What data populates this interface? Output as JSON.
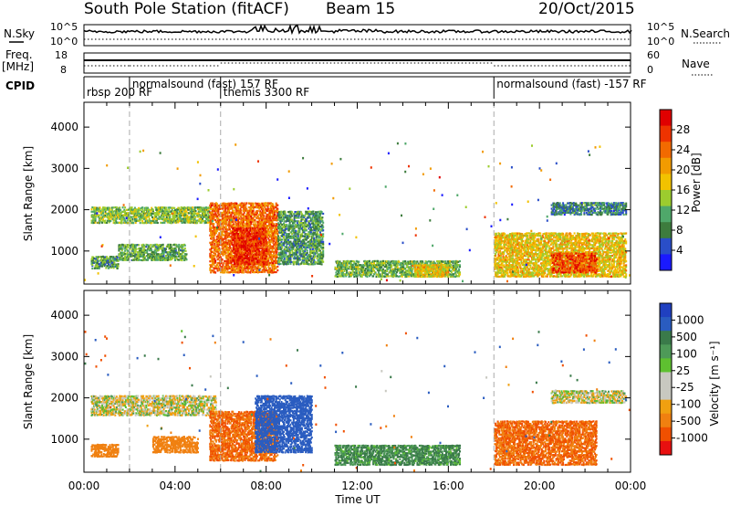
{
  "header": {
    "station": "South Pole Station (fitACF)",
    "beam": "Beam 15",
    "date": "20/Oct/2015"
  },
  "top_panels": {
    "nsky_label": "N.Sky",
    "nsearch_label": "N.Search",
    "nsky_ticks": [
      "10^5",
      "10^0"
    ],
    "nsearch_ticks": [
      "10^5",
      "10^0"
    ],
    "freq_label_1": "Freq.",
    "freq_label_2": "[MHz]",
    "freq_ticks": [
      "18",
      "8"
    ],
    "nave_label": "Nave",
    "nave_ticks": [
      "60",
      "0"
    ],
    "cpid_label": "CPID",
    "cpid_segments": [
      {
        "label": "rbsp 200 RF",
        "start_hour": 0
      },
      {
        "label": "normalsound (fast) 157 RF",
        "start_hour": 2
      },
      {
        "label": "themis 3300 RF",
        "start_hour": 6
      },
      {
        "label": "normalsound (fast) -157 RF",
        "start_hour": 18
      }
    ]
  },
  "colors": {
    "power_scale": [
      "#1a1aff",
      "#2a4ec8",
      "#3d7c3d",
      "#4fa86a",
      "#9ccc2e",
      "#f2c200",
      "#f29b00",
      "#f26a00",
      "#ee3300",
      "#e00000"
    ],
    "velocity_scale": [
      "#2040c0",
      "#2a5cc0",
      "#3a7a4a",
      "#4e9a58",
      "#5ec030",
      "#c8c8c0",
      "#c8c8c0",
      "#f0a010",
      "#f08010",
      "#f05000",
      "#e81010"
    ]
  },
  "chart_data": [
    {
      "type": "heatmap",
      "title": "",
      "xlabel": "Time UT",
      "ylabel": "Slant Range [km]",
      "x_ticks": [
        "00:00",
        "04:00",
        "08:00",
        "12:00",
        "16:00",
        "20:00",
        "00:00"
      ],
      "xlim_hours": [
        0,
        24
      ],
      "ylim": [
        200,
        4600
      ],
      "y_ticks": [
        "4000",
        "3000",
        "2000",
        "1000"
      ],
      "colorbar_label": "Power [dB]",
      "colorbar_ticks": [
        "28",
        "24",
        "20",
        "16",
        "12",
        "8",
        "4"
      ],
      "colorbar_range": [
        0,
        32
      ],
      "features": [
        {
          "hour_start": 0.3,
          "hour_end": 5.5,
          "range_start": 1700,
          "range_end": 2100,
          "power": 13
        },
        {
          "hour_start": 0.3,
          "hour_end": 1.5,
          "range_start": 600,
          "range_end": 900,
          "power": 10
        },
        {
          "hour_start": 1.5,
          "hour_end": 4.5,
          "range_start": 800,
          "range_end": 1200,
          "power": 11
        },
        {
          "hour_start": 5.5,
          "hour_end": 8.5,
          "range_start": 500,
          "range_end": 2200,
          "power": 24
        },
        {
          "hour_start": 6.5,
          "hour_end": 8.0,
          "range_start": 700,
          "range_end": 1600,
          "power": 28
        },
        {
          "hour_start": 8.5,
          "hour_end": 10.5,
          "range_start": 700,
          "range_end": 2000,
          "power": 10
        },
        {
          "hour_start": 11.0,
          "hour_end": 16.5,
          "range_start": 400,
          "range_end": 800,
          "power": 12
        },
        {
          "hour_start": 14.5,
          "hour_end": 16.0,
          "range_start": 400,
          "range_end": 700,
          "power": 18
        },
        {
          "hour_start": 18.0,
          "hour_end": 23.8,
          "range_start": 400,
          "range_end": 1500,
          "power": 18
        },
        {
          "hour_start": 20.5,
          "hour_end": 22.5,
          "range_start": 500,
          "range_end": 1000,
          "power": 26
        },
        {
          "hour_start": 20.5,
          "hour_end": 23.8,
          "range_start": 1900,
          "range_end": 2200,
          "power": 8
        }
      ]
    },
    {
      "type": "heatmap",
      "title": "",
      "xlabel": "Time UT",
      "ylabel": "Slant Range [km]",
      "x_ticks": [
        "00:00",
        "04:00",
        "08:00",
        "12:00",
        "16:00",
        "20:00",
        "00:00"
      ],
      "xlim_hours": [
        0,
        24
      ],
      "ylim": [
        200,
        4600
      ],
      "y_ticks": [
        "4000",
        "3000",
        "2000",
        "1000"
      ],
      "colorbar_label": "Velocity [m s⁻¹]",
      "colorbar_ticks": [
        "1000",
        "500",
        "100",
        "25",
        "-25",
        "-100",
        "-500",
        "-1000"
      ],
      "features": [
        {
          "hour_start": 0.3,
          "hour_end": 5.8,
          "range_start": 1600,
          "range_end": 2100,
          "velocity": 0
        },
        {
          "hour_start": 0.3,
          "hour_end": 1.5,
          "range_start": 600,
          "range_end": 900,
          "velocity": -200
        },
        {
          "hour_start": 3.0,
          "hour_end": 5.0,
          "range_start": 700,
          "range_end": 1100,
          "velocity": -200
        },
        {
          "hour_start": 5.5,
          "hour_end": 8.5,
          "range_start": 500,
          "range_end": 1700,
          "velocity": -300
        },
        {
          "hour_start": 7.5,
          "hour_end": 10.0,
          "range_start": 700,
          "range_end": 2100,
          "velocity": 600
        },
        {
          "hour_start": 11.0,
          "hour_end": 16.5,
          "range_start": 400,
          "range_end": 900,
          "velocity": 120
        },
        {
          "hour_start": 18.0,
          "hour_end": 22.5,
          "range_start": 400,
          "range_end": 1500,
          "velocity": -300
        },
        {
          "hour_start": 20.5,
          "hour_end": 23.8,
          "range_start": 1900,
          "range_end": 2200,
          "velocity": 0
        }
      ]
    }
  ]
}
